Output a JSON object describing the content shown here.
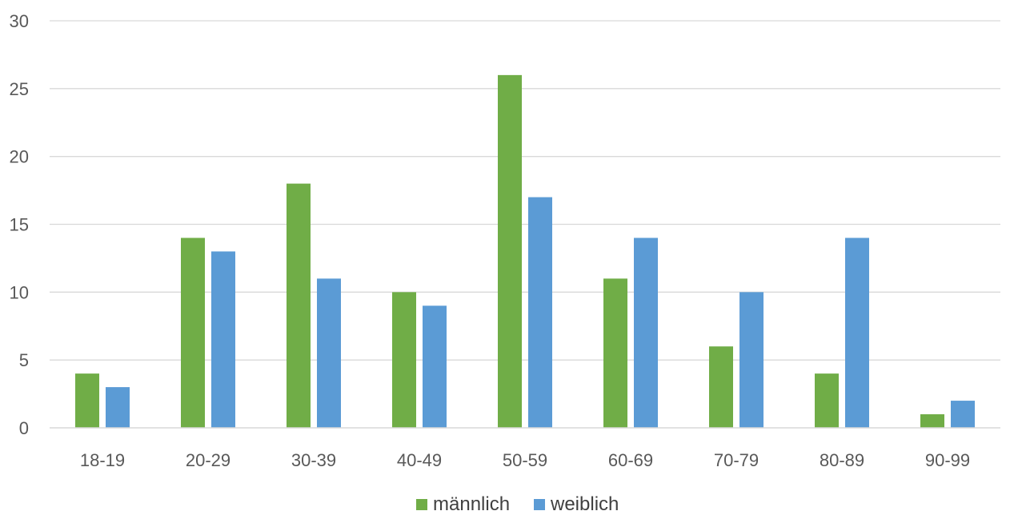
{
  "chart_data": {
    "type": "bar",
    "categories": [
      "18-19",
      "20-29",
      "30-39",
      "40-49",
      "50-59",
      "60-69",
      "70-79",
      "80-89",
      "90-99"
    ],
    "series": [
      {
        "name": "männlich",
        "color": "#70ad47",
        "values": [
          4,
          14,
          18,
          10,
          26,
          11,
          6,
          4,
          1
        ]
      },
      {
        "name": "weiblich",
        "color": "#5b9bd5",
        "values": [
          3,
          13,
          11,
          9,
          17,
          14,
          10,
          14,
          2
        ]
      }
    ],
    "title": "",
    "xlabel": "",
    "ylabel": "",
    "ylim": [
      0,
      30
    ],
    "yticks": [
      0,
      5,
      10,
      15,
      20,
      25,
      30
    ],
    "grid": true,
    "legend_position": "bottom"
  }
}
